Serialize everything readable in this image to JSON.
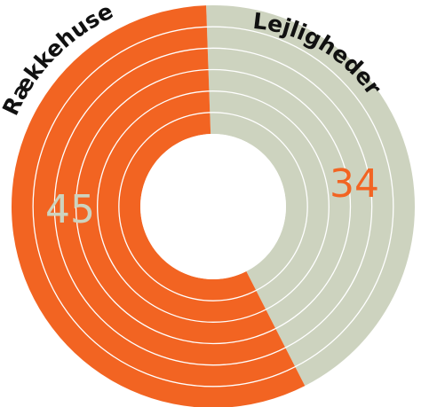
{
  "chart_data": {
    "type": "pie",
    "style": "donut with concentric rings",
    "categories": [
      "Lejligheder",
      "Rækkehuse"
    ],
    "values": [
      34,
      45
    ],
    "colors": {
      "Lejligheder": "#cdd3bf",
      "Rækkehuse": "#f26422"
    },
    "value_label_colors": {
      "Lejligheder": "#f26422",
      "Rækkehuse": "#cdd3bf"
    },
    "ring_separator_color": "#ffffff",
    "ring_count": 6,
    "legend": "none (labels curved along the outer edge)"
  }
}
